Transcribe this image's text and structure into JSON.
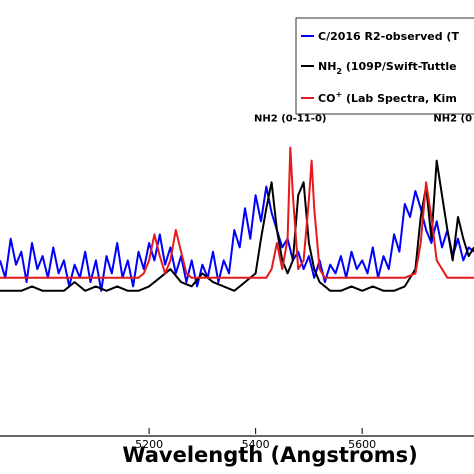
{
  "chart_data": {
    "type": "line",
    "xlabel": "Wavelength (Angstroms)",
    "ylabel": "",
    "xlim": [
      4920,
      5810
    ],
    "ylim": [
      0,
      1
    ],
    "grid": false,
    "legend_placement": "top-right",
    "x_ticks": [
      5200,
      5400,
      5600
    ],
    "x_tick_labels": [
      "5200",
      "5400",
      "5600"
    ],
    "legend": [
      {
        "label": "C/2016 R2-observed (T",
        "color": "#0000ff"
      },
      {
        "label": "NH",
        "subscript": "2",
        "label_rest": " (109P/Swift-Tuttle",
        "color": "#000000"
      },
      {
        "label": "CO",
        "superscript": "+",
        "label_rest": " (Lab Spectra, Kim",
        "color": "#e41a1c"
      }
    ],
    "annotations": [
      {
        "text": "NH2 (0-11-0)",
        "x": 5465,
        "y": 0.72
      },
      {
        "text": "NH2 (0",
        "x": 5770,
        "y": 0.72
      }
    ],
    "series": [
      {
        "name": "C/2016 R2-observed (T",
        "color": "#0000ff",
        "x": [
          4920,
          4930,
          4940,
          4950,
          4960,
          4970,
          4980,
          4990,
          5000,
          5010,
          5020,
          5030,
          5040,
          5050,
          5060,
          5070,
          5080,
          5090,
          5100,
          5110,
          5120,
          5130,
          5140,
          5150,
          5160,
          5170,
          5180,
          5190,
          5200,
          5210,
          5220,
          5230,
          5240,
          5250,
          5260,
          5270,
          5280,
          5290,
          5300,
          5310,
          5320,
          5330,
          5340,
          5350,
          5360,
          5370,
          5380,
          5390,
          5400,
          5410,
          5420,
          5430,
          5440,
          5450,
          5460,
          5470,
          5480,
          5490,
          5500,
          5510,
          5520,
          5530,
          5540,
          5550,
          5560,
          5570,
          5580,
          5590,
          5600,
          5610,
          5620,
          5630,
          5640,
          5650,
          5660,
          5670,
          5680,
          5690,
          5700,
          5710,
          5720,
          5730,
          5740,
          5750,
          5760,
          5770,
          5780,
          5790,
          5800,
          5810
        ],
        "y": [
          0.4,
          0.36,
          0.45,
          0.39,
          0.42,
          0.35,
          0.44,
          0.38,
          0.41,
          0.36,
          0.43,
          0.37,
          0.4,
          0.34,
          0.39,
          0.36,
          0.42,
          0.35,
          0.4,
          0.33,
          0.41,
          0.37,
          0.44,
          0.36,
          0.4,
          0.34,
          0.42,
          0.38,
          0.44,
          0.4,
          0.46,
          0.39,
          0.43,
          0.37,
          0.41,
          0.35,
          0.4,
          0.34,
          0.39,
          0.36,
          0.42,
          0.35,
          0.4,
          0.37,
          0.47,
          0.43,
          0.52,
          0.45,
          0.55,
          0.49,
          0.57,
          0.51,
          0.47,
          0.43,
          0.45,
          0.4,
          0.42,
          0.38,
          0.41,
          0.36,
          0.4,
          0.35,
          0.39,
          0.37,
          0.41,
          0.36,
          0.42,
          0.38,
          0.4,
          0.37,
          0.43,
          0.36,
          0.41,
          0.38,
          0.46,
          0.42,
          0.53,
          0.5,
          0.56,
          0.52,
          0.47,
          0.44,
          0.49,
          0.43,
          0.47,
          0.41,
          0.45,
          0.4,
          0.43,
          0.42
        ]
      },
      {
        "name": "NH2 (109P/Swift-Tuttle",
        "color": "#000000",
        "x": [
          4920,
          4940,
          4960,
          4980,
          5000,
          5020,
          5040,
          5060,
          5080,
          5100,
          5120,
          5140,
          5160,
          5180,
          5200,
          5220,
          5240,
          5260,
          5280,
          5300,
          5320,
          5340,
          5360,
          5380,
          5400,
          5410,
          5420,
          5430,
          5440,
          5450,
          5460,
          5470,
          5480,
          5490,
          5500,
          5510,
          5520,
          5530,
          5540,
          5560,
          5580,
          5600,
          5620,
          5640,
          5660,
          5680,
          5700,
          5710,
          5720,
          5730,
          5740,
          5750,
          5760,
          5770,
          5780,
          5790,
          5800,
          5810
        ],
        "y": [
          0.33,
          0.33,
          0.33,
          0.34,
          0.33,
          0.33,
          0.33,
          0.35,
          0.33,
          0.34,
          0.33,
          0.34,
          0.33,
          0.33,
          0.34,
          0.36,
          0.38,
          0.35,
          0.34,
          0.37,
          0.35,
          0.34,
          0.33,
          0.35,
          0.37,
          0.45,
          0.52,
          0.58,
          0.47,
          0.4,
          0.37,
          0.4,
          0.55,
          0.58,
          0.44,
          0.38,
          0.35,
          0.34,
          0.33,
          0.33,
          0.34,
          0.33,
          0.34,
          0.33,
          0.33,
          0.34,
          0.38,
          0.5,
          0.57,
          0.45,
          0.63,
          0.55,
          0.47,
          0.4,
          0.5,
          0.45,
          0.41,
          0.43
        ]
      },
      {
        "name": "CO+ (Lab Spectra, Kim",
        "color": "#e41a1c",
        "x": [
          4920,
          4960,
          5000,
          5040,
          5080,
          5120,
          5160,
          5180,
          5190,
          5200,
          5210,
          5220,
          5230,
          5240,
          5250,
          5260,
          5270,
          5280,
          5300,
          5320,
          5340,
          5360,
          5380,
          5400,
          5420,
          5430,
          5440,
          5450,
          5460,
          5465,
          5470,
          5480,
          5490,
          5500,
          5505,
          5510,
          5520,
          5530,
          5560,
          5600,
          5640,
          5680,
          5700,
          5710,
          5720,
          5730,
          5740,
          5760,
          5780,
          5800,
          5810
        ],
        "y": [
          0.36,
          0.36,
          0.36,
          0.36,
          0.36,
          0.36,
          0.36,
          0.36,
          0.37,
          0.4,
          0.46,
          0.41,
          0.37,
          0.4,
          0.47,
          0.42,
          0.37,
          0.36,
          0.36,
          0.36,
          0.36,
          0.36,
          0.36,
          0.36,
          0.36,
          0.38,
          0.44,
          0.38,
          0.45,
          0.66,
          0.55,
          0.38,
          0.4,
          0.54,
          0.63,
          0.52,
          0.38,
          0.36,
          0.36,
          0.36,
          0.36,
          0.36,
          0.37,
          0.44,
          0.58,
          0.5,
          0.4,
          0.36,
          0.36,
          0.36,
          0.36
        ]
      }
    ]
  }
}
